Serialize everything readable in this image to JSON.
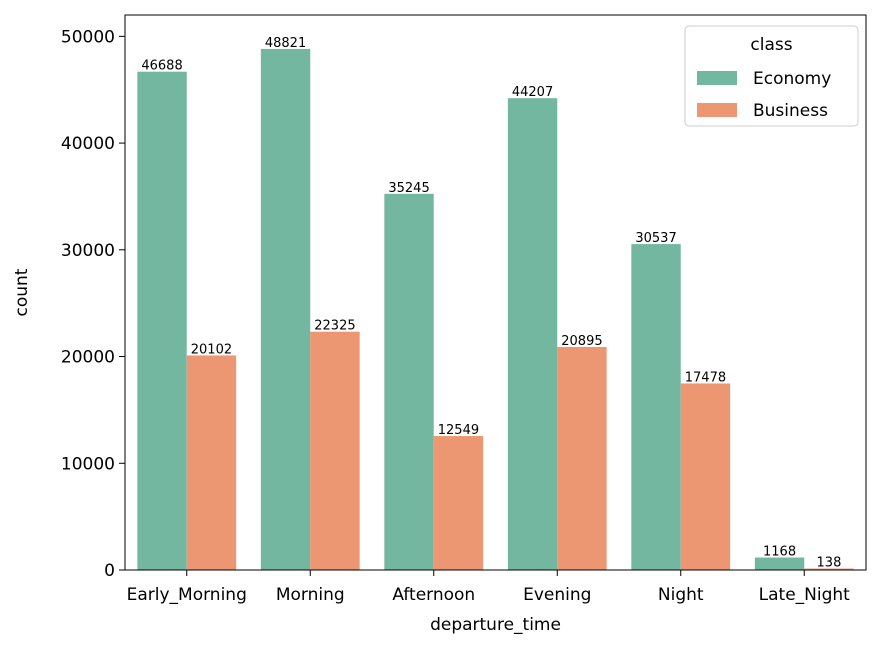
{
  "chart_data": {
    "type": "bar",
    "title": "",
    "xlabel": "departure_time",
    "ylabel": "count",
    "categories": [
      "Early_Morning",
      "Morning",
      "Afternoon",
      "Evening",
      "Night",
      "Late_Night"
    ],
    "series": [
      {
        "name": "Economy",
        "color": "#73b7a0",
        "values": [
          46688,
          48821,
          35245,
          44207,
          30537,
          1168
        ]
      },
      {
        "name": "Business",
        "color": "#ec9672",
        "values": [
          20102,
          22325,
          12549,
          20895,
          17478,
          138
        ]
      }
    ],
    "ylim": [
      0,
      52000
    ],
    "yticks": [
      0,
      10000,
      20000,
      30000,
      40000,
      50000
    ],
    "grid": false,
    "legend": {
      "title": "class",
      "placement": "top-right"
    }
  }
}
